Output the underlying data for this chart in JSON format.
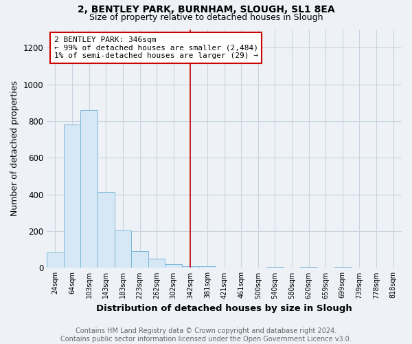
{
  "title1": "2, BENTLEY PARK, BURNHAM, SLOUGH, SL1 8EA",
  "title2": "Size of property relative to detached houses in Slough",
  "xlabel": "Distribution of detached houses by size in Slough",
  "ylabel": "Number of detached properties",
  "footnote": "Contains HM Land Registry data © Crown copyright and database right 2024.\nContains public sector information licensed under the Open Government Licence v3.0.",
  "categories": [
    "24sqm",
    "64sqm",
    "103sqm",
    "143sqm",
    "183sqm",
    "223sqm",
    "262sqm",
    "302sqm",
    "342sqm",
    "381sqm",
    "421sqm",
    "461sqm",
    "500sqm",
    "540sqm",
    "580sqm",
    "620sqm",
    "659sqm",
    "699sqm",
    "739sqm",
    "778sqm",
    "818sqm"
  ],
  "values": [
    85,
    780,
    860,
    415,
    205,
    90,
    50,
    20,
    10,
    10,
    0,
    0,
    0,
    5,
    0,
    5,
    0,
    5,
    0,
    0,
    0
  ],
  "bar_color": "#d6e8f5",
  "bar_edge_color": "#7ab8d8",
  "vline_index": 8,
  "vline_color": "#cc0000",
  "annotation_text": "2 BENTLEY PARK: 346sqm\n← 99% of detached houses are smaller (2,484)\n1% of semi-detached houses are larger (29) →",
  "annotation_box_color": "white",
  "annotation_box_edge_color": "#cc0000",
  "ylim": [
    0,
    1300
  ],
  "yticks": [
    0,
    200,
    400,
    600,
    800,
    1000,
    1200
  ],
  "title1_fontsize": 10,
  "title2_fontsize": 9,
  "xlabel_fontsize": 9.5,
  "ylabel_fontsize": 9,
  "annotation_fontsize": 8,
  "footnote_fontsize": 7,
  "background_color": "#eef2f7",
  "grid_color": "#c8d4e0"
}
